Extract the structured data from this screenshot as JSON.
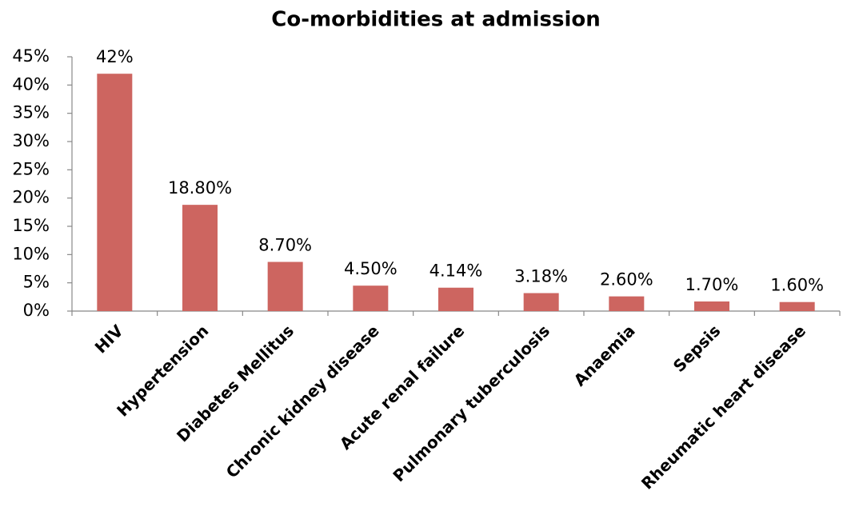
{
  "chart_data": {
    "type": "bar",
    "title": "Co-morbidities at admission",
    "categories": [
      "HIV",
      "Hypertension",
      "Diabetes Mellitus",
      "Chronic kidney disease",
      "Acute renal failure",
      "Pulmonary tuberculosis",
      "Anaemia",
      "Sepsis",
      "Rheumatic heart disease"
    ],
    "values": [
      42,
      18.8,
      8.7,
      4.5,
      4.14,
      3.18,
      2.6,
      1.7,
      1.6
    ],
    "value_labels": [
      "42%",
      "18.80%",
      "8.70%",
      "4.50%",
      "4.14%",
      "3.18%",
      "2.60%",
      "1.70%",
      "1.60%"
    ],
    "color": "#cd6560",
    "ylim": [
      0,
      45
    ],
    "yticks": [
      {
        "value": 0,
        "label": "0%"
      },
      {
        "value": 5,
        "label": "5%"
      },
      {
        "value": 10,
        "label": "10%"
      },
      {
        "value": 15,
        "label": "15%"
      },
      {
        "value": 20,
        "label": "20%"
      },
      {
        "value": 25,
        "label": "25%"
      },
      {
        "value": 30,
        "label": "30%"
      },
      {
        "value": 35,
        "label": "35%"
      },
      {
        "value": 40,
        "label": "40%"
      },
      {
        "value": 45,
        "label": "45%"
      }
    ],
    "grid": false
  }
}
